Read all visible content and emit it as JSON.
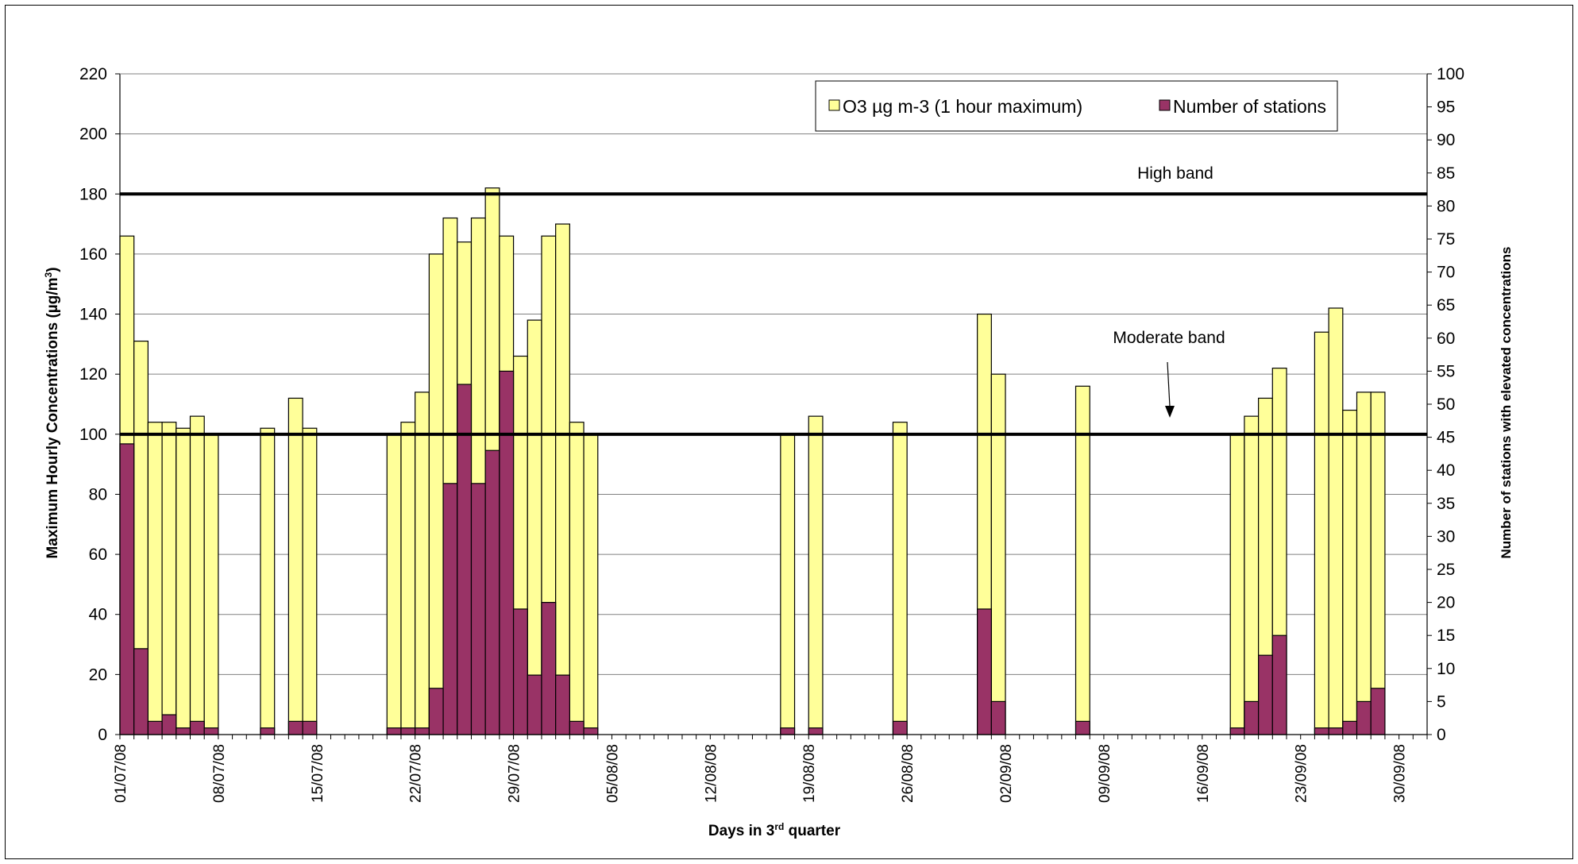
{
  "chart_data": {
    "type": "bar",
    "title": "",
    "xlabel": "Days in 3rd quarter",
    "xlabel_parts": {
      "prefix": "Days in 3",
      "sup": "rd",
      "suffix": " quarter"
    },
    "ylabel_parts": {
      "prefix": "Maximum Hourly Concentrations (µg/m",
      "sup": "3",
      "suffix": ")"
    },
    "y2label": "Number of stations with elevated concentrations",
    "ylim": [
      0,
      220
    ],
    "y_ticks": [
      0,
      20,
      40,
      60,
      80,
      100,
      120,
      140,
      160,
      180,
      200,
      220
    ],
    "y2lim": [
      0,
      100
    ],
    "y2_ticks": [
      0,
      5,
      10,
      15,
      20,
      25,
      30,
      35,
      40,
      45,
      50,
      55,
      60,
      65,
      70,
      75,
      80,
      85,
      90,
      95,
      100
    ],
    "x_tick_labels": [
      "01/07/08",
      "08/07/08",
      "15/07/08",
      "22/07/08",
      "29/07/08",
      "05/08/08",
      "12/08/08",
      "19/08/08",
      "26/08/08",
      "02/09/08",
      "09/09/08",
      "16/09/08",
      "23/09/08",
      "30/09/08"
    ],
    "x_start_date": "01/07/08",
    "grid": true,
    "legend_position": "top-right",
    "colors": {
      "o3": "#ffff99",
      "stations": "#993366",
      "reference_line": "#000000"
    },
    "reference_lines": [
      {
        "label": "High band",
        "value": 180
      },
      {
        "label": "Moderate band",
        "value": 100
      }
    ],
    "series": [
      {
        "name": "O3 µg m-3 (1 hour maximum)",
        "axis": "left",
        "values": [
          {
            "date": "01/07/08",
            "value": 166
          },
          {
            "date": "02/07/08",
            "value": 131
          },
          {
            "date": "03/07/08",
            "value": 104
          },
          {
            "date": "04/07/08",
            "value": 104
          },
          {
            "date": "05/07/08",
            "value": 102
          },
          {
            "date": "06/07/08",
            "value": 106
          },
          {
            "date": "07/07/08",
            "value": 100
          },
          {
            "date": "11/07/08",
            "value": 102
          },
          {
            "date": "13/07/08",
            "value": 112
          },
          {
            "date": "14/07/08",
            "value": 102
          },
          {
            "date": "20/07/08",
            "value": 100
          },
          {
            "date": "21/07/08",
            "value": 104
          },
          {
            "date": "22/07/08",
            "value": 114
          },
          {
            "date": "23/07/08",
            "value": 160
          },
          {
            "date": "24/07/08",
            "value": 172
          },
          {
            "date": "25/07/08",
            "value": 164
          },
          {
            "date": "26/07/08",
            "value": 172
          },
          {
            "date": "27/07/08",
            "value": 182
          },
          {
            "date": "28/07/08",
            "value": 166
          },
          {
            "date": "29/07/08",
            "value": 126
          },
          {
            "date": "30/07/08",
            "value": 138
          },
          {
            "date": "31/07/08",
            "value": 166
          },
          {
            "date": "01/08/08",
            "value": 170
          },
          {
            "date": "02/08/08",
            "value": 104
          },
          {
            "date": "03/08/08",
            "value": 100
          },
          {
            "date": "17/08/08",
            "value": 100
          },
          {
            "date": "19/08/08",
            "value": 106
          },
          {
            "date": "25/08/08",
            "value": 104
          },
          {
            "date": "31/08/08",
            "value": 140
          },
          {
            "date": "01/09/08",
            "value": 120
          },
          {
            "date": "07/09/08",
            "value": 116
          },
          {
            "date": "18/09/08",
            "value": 100
          },
          {
            "date": "19/09/08",
            "value": 106
          },
          {
            "date": "20/09/08",
            "value": 112
          },
          {
            "date": "21/09/08",
            "value": 122
          },
          {
            "date": "24/09/08",
            "value": 134
          },
          {
            "date": "25/09/08",
            "value": 142
          },
          {
            "date": "26/09/08",
            "value": 108
          },
          {
            "date": "27/09/08",
            "value": 114
          },
          {
            "date": "28/09/08",
            "value": 114
          }
        ]
      },
      {
        "name": "Number of stations",
        "axis": "right",
        "values": [
          {
            "date": "01/07/08",
            "value": 44
          },
          {
            "date": "02/07/08",
            "value": 13
          },
          {
            "date": "03/07/08",
            "value": 2
          },
          {
            "date": "04/07/08",
            "value": 3
          },
          {
            "date": "05/07/08",
            "value": 1
          },
          {
            "date": "06/07/08",
            "value": 2
          },
          {
            "date": "07/07/08",
            "value": 1
          },
          {
            "date": "11/07/08",
            "value": 1
          },
          {
            "date": "13/07/08",
            "value": 2
          },
          {
            "date": "14/07/08",
            "value": 2
          },
          {
            "date": "20/07/08",
            "value": 1
          },
          {
            "date": "21/07/08",
            "value": 1
          },
          {
            "date": "22/07/08",
            "value": 1
          },
          {
            "date": "23/07/08",
            "value": 7
          },
          {
            "date": "24/07/08",
            "value": 38
          },
          {
            "date": "25/07/08",
            "value": 53
          },
          {
            "date": "26/07/08",
            "value": 38
          },
          {
            "date": "27/07/08",
            "value": 43
          },
          {
            "date": "28/07/08",
            "value": 55
          },
          {
            "date": "29/07/08",
            "value": 19
          },
          {
            "date": "30/07/08",
            "value": 9
          },
          {
            "date": "31/07/08",
            "value": 20
          },
          {
            "date": "01/08/08",
            "value": 9
          },
          {
            "date": "02/08/08",
            "value": 2
          },
          {
            "date": "03/08/08",
            "value": 1
          },
          {
            "date": "17/08/08",
            "value": 1
          },
          {
            "date": "19/08/08",
            "value": 1
          },
          {
            "date": "25/08/08",
            "value": 2
          },
          {
            "date": "31/08/08",
            "value": 19
          },
          {
            "date": "01/09/08",
            "value": 5
          },
          {
            "date": "07/09/08",
            "value": 2
          },
          {
            "date": "18/09/08",
            "value": 1
          },
          {
            "date": "19/09/08",
            "value": 5
          },
          {
            "date": "20/09/08",
            "value": 12
          },
          {
            "date": "21/09/08",
            "value": 15
          },
          {
            "date": "24/09/08",
            "value": 1
          },
          {
            "date": "25/09/08",
            "value": 1
          },
          {
            "date": "26/09/08",
            "value": 2
          },
          {
            "date": "27/09/08",
            "value": 5
          },
          {
            "date": "28/09/08",
            "value": 7
          }
        ]
      }
    ]
  }
}
